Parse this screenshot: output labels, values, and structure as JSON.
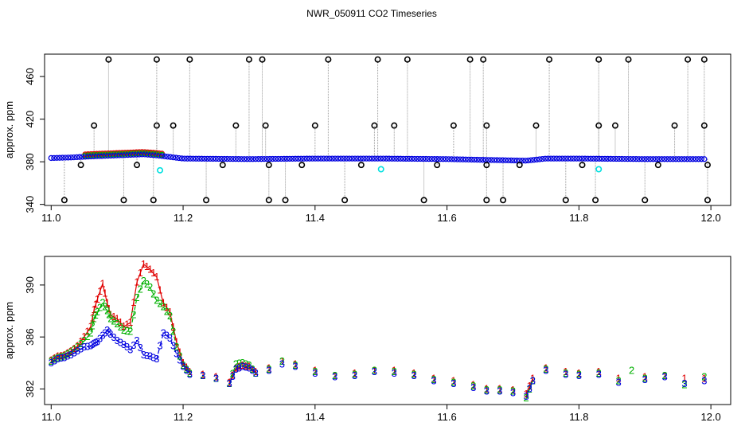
{
  "title": "NWR_050911  CO2 Timeseries",
  "colors": {
    "s1": "#e00000",
    "s2": "#00b000",
    "s3": "#0000e0",
    "cal": "#000000",
    "cyan": "#00e0e0",
    "gray": "#999999"
  },
  "chart_data": [
    {
      "type": "scatter",
      "ylabel": "approx. ppm",
      "xlabel": "",
      "xlim": [
        10.99,
        12.03
      ],
      "ylim": [
        339,
        481
      ],
      "xticks": [
        11.0,
        11.2,
        11.4,
        11.6,
        11.8,
        12.0
      ],
      "yticks": [
        340,
        380,
        420,
        460
      ],
      "grid": false,
      "baseline": [
        [
          11.0,
          383.5
        ],
        [
          11.03,
          384
        ],
        [
          11.06,
          385
        ],
        [
          11.1,
          386
        ],
        [
          11.14,
          387
        ],
        [
          11.16,
          386
        ],
        [
          11.2,
          383
        ],
        [
          11.3,
          382.5
        ],
        [
          11.4,
          383
        ],
        [
          11.5,
          383
        ],
        [
          11.6,
          382.5
        ],
        [
          11.68,
          381.5
        ],
        [
          11.72,
          381
        ],
        [
          11.75,
          383
        ],
        [
          11.8,
          383
        ],
        [
          11.9,
          382.5
        ],
        [
          11.99,
          382.5
        ]
      ],
      "calibration_points": [
        [
          11.02,
          344
        ],
        [
          11.045,
          377
        ],
        [
          11.065,
          414
        ],
        [
          11.087,
          476
        ],
        [
          11.11,
          344
        ],
        [
          11.13,
          377
        ],
        [
          11.155,
          344
        ],
        [
          11.16,
          414
        ],
        [
          11.16,
          476
        ],
        [
          11.185,
          414
        ],
        [
          11.21,
          476
        ],
        [
          11.235,
          344
        ],
        [
          11.26,
          377
        ],
        [
          11.28,
          414
        ],
        [
          11.3,
          476
        ],
        [
          11.32,
          476
        ],
        [
          11.325,
          414
        ],
        [
          11.33,
          377
        ],
        [
          11.33,
          344
        ],
        [
          11.355,
          344
        ],
        [
          11.38,
          377
        ],
        [
          11.4,
          414
        ],
        [
          11.42,
          476
        ],
        [
          11.445,
          344
        ],
        [
          11.47,
          377
        ],
        [
          11.49,
          414
        ],
        [
          11.495,
          476
        ],
        [
          11.52,
          414
        ],
        [
          11.54,
          476
        ],
        [
          11.565,
          344
        ],
        [
          11.585,
          377
        ],
        [
          11.61,
          414
        ],
        [
          11.635,
          476
        ],
        [
          11.655,
          476
        ],
        [
          11.66,
          414
        ],
        [
          11.66,
          377
        ],
        [
          11.66,
          344
        ],
        [
          11.685,
          344
        ],
        [
          11.71,
          377
        ],
        [
          11.735,
          414
        ],
        [
          11.755,
          476
        ],
        [
          11.78,
          344
        ],
        [
          11.805,
          377
        ],
        [
          11.825,
          344
        ],
        [
          11.83,
          414
        ],
        [
          11.83,
          476
        ],
        [
          11.855,
          414
        ],
        [
          11.875,
          476
        ],
        [
          11.9,
          344
        ],
        [
          11.92,
          377
        ],
        [
          11.945,
          414
        ],
        [
          11.965,
          476
        ],
        [
          11.99,
          476
        ],
        [
          11.99,
          414
        ],
        [
          11.995,
          377
        ],
        [
          11.995,
          344
        ]
      ],
      "cyan_points": [
        [
          11.165,
          372
        ],
        [
          11.5,
          373
        ],
        [
          11.83,
          373
        ]
      ]
    },
    {
      "type": "line",
      "ylabel": "approx. ppm",
      "xlabel": "",
      "xlim": [
        10.99,
        12.03
      ],
      "ylim": [
        380.8,
        392.2
      ],
      "xticks": [
        11.0,
        11.2,
        11.4,
        11.6,
        11.8,
        12.0
      ],
      "yticks": [
        382,
        386,
        390
      ],
      "grid": false,
      "series": [
        {
          "marker": "1",
          "points": [
            [
              11.0,
              384.2
            ],
            [
              11.01,
              384.5
            ],
            [
              11.02,
              384.6
            ],
            [
              11.03,
              384.9
            ],
            [
              11.04,
              385.3
            ],
            [
              11.05,
              386.0
            ],
            [
              11.06,
              386.8
            ],
            [
              11.065,
              388.1
            ],
            [
              11.07,
              388.9
            ],
            [
              11.078,
              390.1
            ],
            [
              11.085,
              388.6
            ],
            [
              11.09,
              387.7
            ],
            [
              11.1,
              387.4
            ],
            [
              11.11,
              386.8
            ],
            [
              11.12,
              387.1
            ],
            [
              11.13,
              390.2
            ],
            [
              11.14,
              391.6
            ],
            [
              11.15,
              391.2
            ],
            [
              11.16,
              390.6
            ],
            [
              11.17,
              388.6
            ],
            [
              11.18,
              387.9
            ],
            [
              11.19,
              385.6
            ],
            [
              11.2,
              384.0
            ],
            [
              11.21,
              383.3
            ],
            [
              11.23,
              383.1
            ],
            [
              11.25,
              382.9
            ],
            [
              11.27,
              382.5
            ],
            [
              11.28,
              383.6
            ],
            [
              11.29,
              383.8
            ],
            [
              11.3,
              383.7
            ],
            [
              11.31,
              383.3
            ],
            [
              11.33,
              383.6
            ],
            [
              11.35,
              384.1
            ],
            [
              11.37,
              383.9
            ],
            [
              11.4,
              383.4
            ],
            [
              11.43,
              383.0
            ],
            [
              11.46,
              383.2
            ],
            [
              11.49,
              383.4
            ],
            [
              11.52,
              383.4
            ],
            [
              11.55,
              383.2
            ],
            [
              11.58,
              382.8
            ],
            [
              11.61,
              382.6
            ],
            [
              11.64,
              382.3
            ],
            [
              11.66,
              382.0
            ],
            [
              11.68,
              382.0
            ],
            [
              11.7,
              381.9
            ],
            [
              11.72,
              381.6
            ],
            [
              11.73,
              382.8
            ],
            [
              11.75,
              383.6
            ],
            [
              11.78,
              383.3
            ],
            [
              11.8,
              383.2
            ],
            [
              11.83,
              383.3
            ],
            [
              11.86,
              382.8
            ],
            [
              11.9,
              382.9
            ],
            [
              11.93,
              383.0
            ],
            [
              11.96,
              382.8
            ],
            [
              11.99,
              382.8
            ]
          ]
        },
        {
          "marker": "2",
          "points": [
            [
              11.0,
              384.1
            ],
            [
              11.01,
              384.4
            ],
            [
              11.02,
              384.5
            ],
            [
              11.03,
              384.8
            ],
            [
              11.04,
              385.2
            ],
            [
              11.05,
              385.7
            ],
            [
              11.06,
              386.3
            ],
            [
              11.065,
              387.4
            ],
            [
              11.07,
              387.9
            ],
            [
              11.078,
              388.6
            ],
            [
              11.085,
              388.0
            ],
            [
              11.09,
              387.4
            ],
            [
              11.1,
              387.0
            ],
            [
              11.11,
              386.5
            ],
            [
              11.12,
              386.4
            ],
            [
              11.13,
              389.0
            ],
            [
              11.14,
              390.3
            ],
            [
              11.15,
              389.8
            ],
            [
              11.16,
              388.8
            ],
            [
              11.17,
              388.3
            ],
            [
              11.18,
              387.6
            ],
            [
              11.19,
              385.2
            ],
            [
              11.2,
              383.8
            ],
            [
              11.21,
              383.2
            ],
            [
              11.23,
              383.0
            ],
            [
              11.25,
              382.8
            ],
            [
              11.27,
              382.4
            ],
            [
              11.28,
              383.9
            ],
            [
              11.29,
              384.0
            ],
            [
              11.3,
              383.8
            ],
            [
              11.31,
              383.2
            ],
            [
              11.33,
              383.5
            ],
            [
              11.35,
              384.1
            ],
            [
              11.37,
              383.8
            ],
            [
              11.4,
              383.3
            ],
            [
              11.43,
              383.0
            ],
            [
              11.46,
              383.1
            ],
            [
              11.49,
              383.4
            ],
            [
              11.52,
              383.3
            ],
            [
              11.55,
              383.1
            ],
            [
              11.58,
              382.7
            ],
            [
              11.61,
              382.5
            ],
            [
              11.64,
              382.2
            ],
            [
              11.66,
              381.9
            ],
            [
              11.68,
              381.9
            ],
            [
              11.7,
              381.8
            ],
            [
              11.72,
              381.3
            ],
            [
              11.73,
              382.6
            ],
            [
              11.75,
              383.5
            ],
            [
              11.78,
              383.2
            ],
            [
              11.8,
              383.1
            ],
            [
              11.83,
              383.2
            ],
            [
              11.86,
              382.6
            ],
            [
              11.88,
              383.4
            ],
            [
              11.9,
              382.8
            ],
            [
              11.93,
              383.0
            ],
            [
              11.96,
              382.3
            ],
            [
              11.99,
              382.9
            ]
          ]
        },
        {
          "marker": "3",
          "points": [
            [
              11.0,
              384.0
            ],
            [
              11.01,
              384.3
            ],
            [
              11.02,
              384.4
            ],
            [
              11.03,
              384.6
            ],
            [
              11.04,
              384.9
            ],
            [
              11.05,
              385.2
            ],
            [
              11.06,
              385.3
            ],
            [
              11.065,
              385.5
            ],
            [
              11.07,
              385.6
            ],
            [
              11.078,
              386.1
            ],
            [
              11.085,
              386.5
            ],
            [
              11.09,
              386.2
            ],
            [
              11.1,
              385.7
            ],
            [
              11.11,
              385.4
            ],
            [
              11.12,
              385.0
            ],
            [
              11.13,
              385.7
            ],
            [
              11.14,
              384.6
            ],
            [
              11.15,
              384.5
            ],
            [
              11.16,
              384.3
            ],
            [
              11.17,
              386.3
            ],
            [
              11.18,
              385.9
            ],
            [
              11.19,
              384.7
            ],
            [
              11.2,
              383.7
            ],
            [
              11.21,
              383.1
            ],
            [
              11.23,
              383.0
            ],
            [
              11.25,
              382.8
            ],
            [
              11.27,
              382.4
            ],
            [
              11.28,
              383.5
            ],
            [
              11.29,
              383.7
            ],
            [
              11.3,
              383.6
            ],
            [
              11.31,
              383.2
            ],
            [
              11.33,
              383.4
            ],
            [
              11.35,
              383.9
            ],
            [
              11.37,
              383.7
            ],
            [
              11.4,
              383.2
            ],
            [
              11.43,
              382.9
            ],
            [
              11.46,
              383.0
            ],
            [
              11.49,
              383.3
            ],
            [
              11.52,
              383.2
            ],
            [
              11.55,
              383.0
            ],
            [
              11.58,
              382.6
            ],
            [
              11.61,
              382.4
            ],
            [
              11.64,
              382.1
            ],
            [
              11.66,
              381.8
            ],
            [
              11.68,
              381.8
            ],
            [
              11.7,
              381.7
            ],
            [
              11.72,
              381.4
            ],
            [
              11.73,
              382.6
            ],
            [
              11.75,
              383.4
            ],
            [
              11.78,
              383.1
            ],
            [
              11.8,
              383.0
            ],
            [
              11.83,
              383.1
            ],
            [
              11.86,
              382.5
            ],
            [
              11.9,
              382.7
            ],
            [
              11.93,
              382.9
            ],
            [
              11.96,
              382.4
            ],
            [
              11.99,
              382.6
            ]
          ]
        }
      ]
    }
  ]
}
